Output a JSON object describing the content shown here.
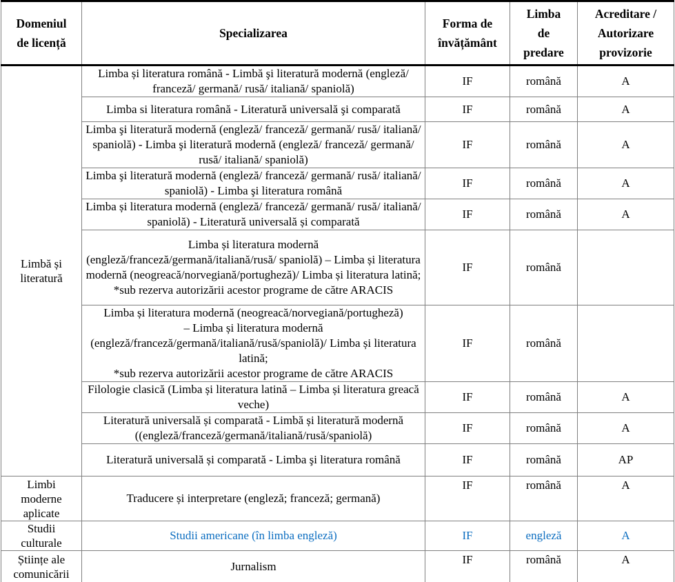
{
  "table": {
    "headers": [
      "Domeniul\nde licență",
      "Specializarea",
      "Forma de\nînvățământ",
      "Limba\nde\npredare",
      "Acreditare /\nAutorizare\nprovizorie"
    ],
    "domains": [
      {
        "label": "Limbă și\nliteratură"
      },
      {
        "label": "Limbi\nmoderne\naplicate"
      },
      {
        "label": "Studii\nculturale"
      },
      {
        "label": "Științe ale\ncomunicării"
      }
    ],
    "rows": [
      {
        "spec": "Limba și literatura română - Limbă şi literatură modernă (engleză/ franceză/ germană/ rusă/ italiană/ spaniolă)",
        "form": "IF",
        "lang": "română",
        "accr": "A"
      },
      {
        "spec": "Limba si literatura română - Literatură universală şi comparată",
        "form": "IF",
        "lang": "română",
        "accr": "A"
      },
      {
        "spec": "Limba şi literatură modernă (engleză/ franceză/ germană/ rusă/ italiană/ spaniolă) - Limba şi literatură modernă (engleză/ franceză/ germană/ rusă/ italiană/ spaniolă)",
        "form": "IF",
        "lang": "română",
        "accr": "A"
      },
      {
        "spec": "Limba şi literatură modernă  (engleză/ franceză/ germană/ rusă/ italiană/ spaniolă) - Limba şi literatura română",
        "form": "IF",
        "lang": "română",
        "accr": "A"
      },
      {
        "spec": "Limba și literatura modernă (engleză/ franceză/ germană/ rusă/ italiană/ spaniolă) - Literatură universală și comparată",
        "form": "IF",
        "lang": "română",
        "accr": "A"
      },
      {
        "spec": "Limba și literatura modernă\n(engleză/franceză/germană/italiană/rusă/ spaniolă) – Limba și literatura modernă (neogreacă/norvegiană/portugheză)/ Limba și literatura latină;\n*sub rezerva autorizării acestor programe de către ARACIS",
        "form": "IF",
        "lang": "română",
        "accr": ""
      },
      {
        "spec": "Limba și literatura modernă (neogreacă/norvegiană/portugheză)\n– Limba și literatura modernă\n(engleză/franceză/germană/italiană/rusă/spaniolă)/ Limba și literatura latină;\n*sub rezerva autorizării acestor programe de către ARACIS",
        "form": "IF",
        "lang": "română",
        "accr": ""
      },
      {
        "spec": "Filologie clasică (Limba și literatura latină – Limba și literatura greacă veche)",
        "form": "IF",
        "lang": "română",
        "accr": "A"
      },
      {
        "spec": "Literatură universală și comparată - Limbă și literatură modernă ((engleză/franceză/germană/italiană/rusă/spaniolă)",
        "form": "IF",
        "lang": "română",
        "accr": "A"
      },
      {
        "spec": "Literatură universală și comparată - Limba şi literatura română",
        "form": "IF",
        "lang": "română",
        "accr": "AP"
      },
      {
        "spec": "Traducere și interpretare (engleză; franceză; germană)",
        "form": "IF",
        "lang": "română",
        "accr": "A"
      },
      {
        "spec": "Studii americane (în limba engleză)",
        "form": "IF",
        "lang": "engleză",
        "accr": "A"
      },
      {
        "spec": "Jurnalism",
        "form": "IF",
        "lang": "română",
        "accr": "A"
      }
    ]
  },
  "colors": {
    "link_blue": "#0b6dc0",
    "grid_gray": "#7f7f7f",
    "header_rule": "#000000"
  }
}
